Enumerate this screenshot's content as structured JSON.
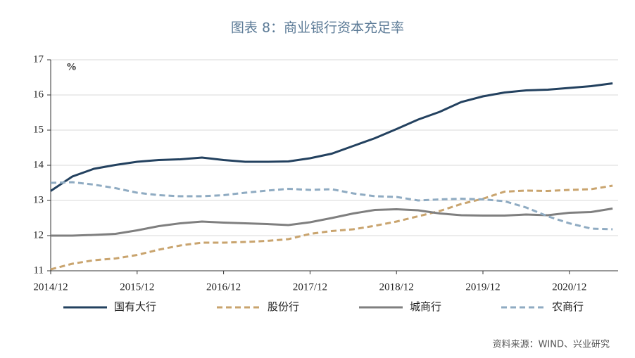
{
  "chart_data": {
    "type": "line",
    "title": "图表 8：商业银行资本充足率",
    "y_label": "%",
    "source": "资料来源：WIND、兴业研究",
    "categories": [
      "2014/12",
      null,
      null,
      null,
      "2015/12",
      null,
      null,
      null,
      "2016/12",
      null,
      null,
      null,
      "2017/12",
      null,
      null,
      null,
      "2018/12",
      null,
      null,
      null,
      "2019/12",
      null,
      null,
      null,
      "2020/12",
      null,
      null
    ],
    "ylim": [
      11,
      17
    ],
    "yticks": [
      11,
      12,
      13,
      14,
      15,
      16,
      17
    ],
    "grid": true,
    "series": [
      {
        "name": "国有大行",
        "color": "#23415f",
        "dash": "solid",
        "values": [
          13.27,
          13.68,
          13.9,
          14.01,
          14.1,
          14.15,
          14.17,
          14.22,
          14.15,
          14.1,
          14.1,
          14.11,
          14.2,
          14.33,
          14.55,
          14.77,
          15.03,
          15.3,
          15.52,
          15.8,
          15.96,
          16.07,
          16.13,
          16.15,
          16.2,
          16.25,
          16.33
        ]
      },
      {
        "name": "股份行",
        "color": "#c9a46e",
        "dash": "dashed",
        "values": [
          11.04,
          11.2,
          11.3,
          11.35,
          11.45,
          11.6,
          11.72,
          11.8,
          11.8,
          11.82,
          11.85,
          11.9,
          12.05,
          12.13,
          12.18,
          12.28,
          12.4,
          12.55,
          12.7,
          12.9,
          13.05,
          13.25,
          13.28,
          13.27,
          13.3,
          13.32,
          13.42
        ]
      },
      {
        "name": "城商行",
        "color": "#7f7f7f",
        "dash": "solid",
        "values": [
          12.0,
          12.0,
          12.02,
          12.05,
          12.15,
          12.27,
          12.35,
          12.4,
          12.37,
          12.35,
          12.33,
          12.3,
          12.38,
          12.5,
          12.63,
          12.73,
          12.75,
          12.72,
          12.63,
          12.58,
          12.57,
          12.57,
          12.6,
          12.58,
          12.65,
          12.67,
          12.77
        ]
      },
      {
        "name": "农商行",
        "color": "#8fabc2",
        "dash": "dashed",
        "values": [
          13.5,
          13.52,
          13.45,
          13.35,
          13.22,
          13.15,
          13.12,
          13.12,
          13.15,
          13.22,
          13.28,
          13.33,
          13.3,
          13.32,
          13.2,
          13.12,
          13.1,
          13.0,
          13.03,
          13.05,
          13.03,
          12.98,
          12.8,
          12.55,
          12.35,
          12.2,
          12.18
        ]
      }
    ]
  }
}
